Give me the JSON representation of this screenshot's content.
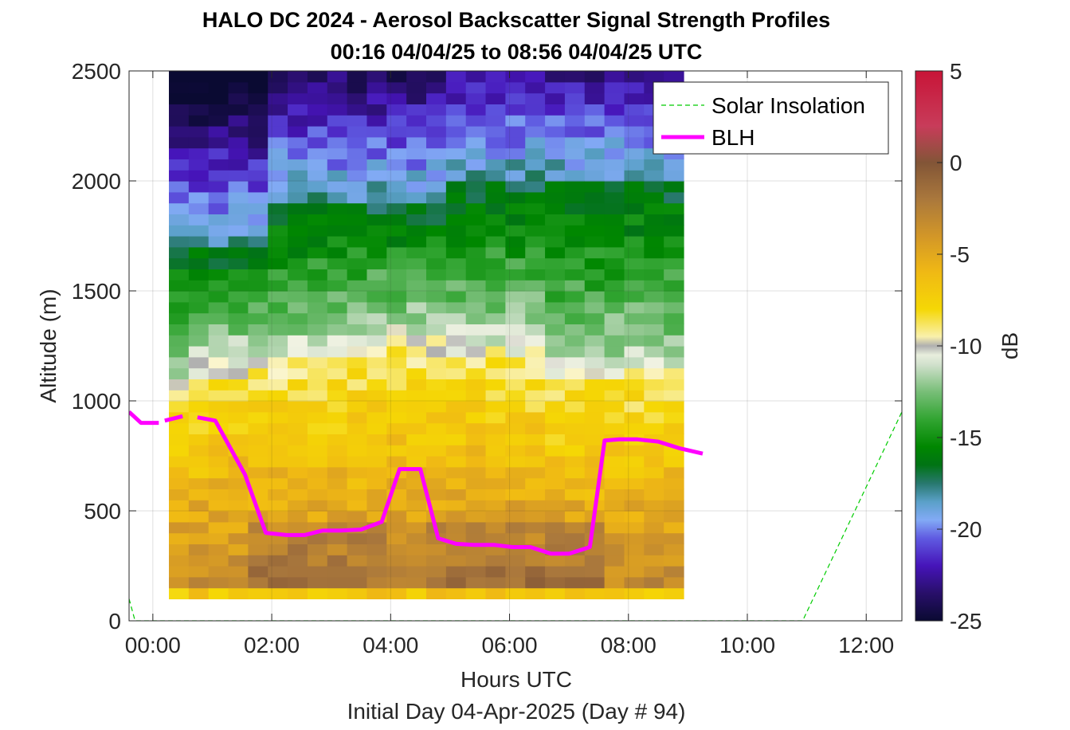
{
  "chart_data": {
    "type": "heatmap",
    "title": "HALO DC 2024 - Aerosol Backscatter Signal Strength Profiles",
    "subtitle": "00:16 04/04/25 to 08:56 04/04/25  UTC",
    "xlabel": "Hours UTC",
    "xlabel2": "Initial Day 04-Apr-2025 (Day # 94)",
    "ylabel": "Altitude (m)",
    "colorbar_label": "dB",
    "xlim": [
      -0.4,
      12.6
    ],
    "ylim": [
      0,
      2500
    ],
    "clim": [
      -25,
      5
    ],
    "grid": true,
    "xticks": [
      0,
      2,
      4,
      6,
      8,
      10,
      12
    ],
    "xtick_labels": [
      "00:00",
      "02:00",
      "04:00",
      "06:00",
      "08:00",
      "10:00",
      "12:00"
    ],
    "yticks": [
      0,
      500,
      1000,
      1500,
      2000,
      2500
    ],
    "ytick_labels": [
      "0",
      "500",
      "1000",
      "1500",
      "2000",
      "2500"
    ],
    "cbar_ticks": [
      5,
      0,
      -5,
      -10,
      -15,
      -20,
      -25
    ],
    "cbar_tick_labels": [
      "5",
      "0",
      "-5",
      "-10",
      "-15",
      "-20",
      "-25"
    ],
    "heatmap": {
      "x_start": 0.27,
      "x_step": 0.333,
      "n_cols": 26,
      "y_start": 100,
      "y_step": 50,
      "n_rows": 48,
      "value_units": "dB"
    },
    "series": [
      {
        "name": "Solar Insolation",
        "color": "#00cc00",
        "style": "dashed",
        "x": [
          -0.4,
          -0.3,
          10.93,
          12.6
        ],
        "y": [
          100,
          0,
          0,
          950
        ]
      },
      {
        "name": "BLH",
        "color": "#ff00ff",
        "style": "solid",
        "segments": [
          {
            "x": [
              -0.4,
              -0.2,
              0.1
            ],
            "y": [
              950,
              900,
              900
            ]
          },
          {
            "x": [
              0.2,
              0.5
            ],
            "y": [
              910,
              930
            ]
          },
          {
            "x": [
              0.75,
              1.05,
              1.55,
              1.9,
              2.25,
              2.55,
              2.85,
              3.15,
              3.5,
              3.85,
              4.15,
              4.5,
              4.8,
              5.1,
              5.4,
              5.75,
              6.05,
              6.35,
              6.7,
              7.0,
              7.35,
              7.6,
              7.85,
              8.15,
              8.5,
              8.85,
              9.25
            ],
            "y": [
              925,
              910,
              665,
              400,
              390,
              390,
              410,
              410,
              415,
              450,
              690,
              690,
              375,
              350,
              345,
              345,
              335,
              335,
              305,
              305,
              335,
              820,
              825,
              825,
              815,
              785,
              760
            ]
          }
        ]
      }
    ],
    "legend": {
      "position": "top-right",
      "entries": [
        "Solar Insolation",
        "BLH"
      ]
    }
  }
}
